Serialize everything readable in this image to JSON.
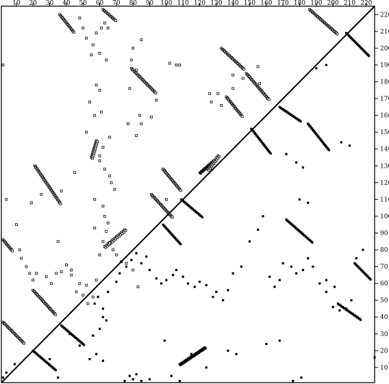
{
  "chart_data": {
    "type": "contact_map",
    "title": "",
    "xlabel": "",
    "ylabel": "",
    "xlim": [
      1,
      225
    ],
    "ylim": [
      1,
      225
    ],
    "x_ticks": [
      10,
      20,
      30,
      40,
      50,
      60,
      70,
      80,
      90,
      100,
      110,
      120,
      130,
      140,
      150,
      160,
      170,
      180,
      190,
      200,
      210,
      220
    ],
    "y_ticks": [
      10,
      20,
      30,
      40,
      50,
      60,
      70,
      80,
      90,
      100,
      110,
      120,
      130,
      140,
      150,
      160,
      170,
      180,
      190,
      200,
      210,
      220
    ],
    "diagonal": true,
    "colors": {
      "contact": "#000000",
      "outline": "#000000",
      "background": "#ffffff"
    },
    "series": [
      {
        "name": "",
        "style": "filled",
        "segments": [
          {
            "from": [
              20,
              20
            ],
            "to": [
              33,
              9
            ]
          },
          {
            "from": [
              37,
              35
            ],
            "to": [
              50,
              24
            ]
          },
          {
            "from": [
              108,
              12
            ],
            "to": [
              123,
              22
            ]
          },
          {
            "from": [
              98,
              95
            ],
            "to": [
              108,
              84
            ]
          },
          {
            "from": [
              109,
              110
            ],
            "to": [
              121,
              100
            ]
          },
          {
            "from": [
              120,
              126
            ],
            "to": [
              128,
              133
            ]
          },
          {
            "from": [
              151,
              152
            ],
            "to": [
              162,
              138
            ]
          },
          {
            "from": [
              168,
              165
            ],
            "to": [
              180,
              157
            ]
          },
          {
            "from": [
              172,
              98
            ],
            "to": [
              187,
              85
            ]
          },
          {
            "from": [
              185,
              155
            ],
            "to": [
              197,
              140
            ]
          },
          {
            "from": [
              208,
              209
            ],
            "to": [
              221,
              196
            ]
          },
          {
            "from": [
              213,
              72
            ],
            "to": [
              222,
              63
            ]
          },
          {
            "from": [
              203,
              48
            ],
            "to": [
              216,
              39
            ]
          }
        ],
        "points": [
          [
            2,
            4
          ],
          [
            4,
            7
          ],
          [
            9,
            12
          ],
          [
            30,
            15
          ],
          [
            35,
            4
          ],
          [
            42,
            30
          ],
          [
            48,
            23
          ],
          [
            54,
            15
          ],
          [
            58,
            18
          ],
          [
            62,
            14
          ],
          [
            56,
            29
          ],
          [
            60,
            33
          ],
          [
            62,
            40
          ],
          [
            64,
            38
          ],
          [
            57,
            48
          ],
          [
            59,
            52
          ],
          [
            62,
            45
          ],
          [
            65,
            55
          ],
          [
            70,
            61
          ],
          [
            72,
            66
          ],
          [
            76,
            70
          ],
          [
            79,
            74
          ],
          [
            82,
            78
          ],
          [
            85,
            72
          ],
          [
            88,
            76
          ],
          [
            90,
            68
          ],
          [
            94,
            63
          ],
          [
            97,
            60
          ],
          [
            100,
            62
          ],
          [
            104,
            65
          ],
          [
            106,
            68
          ],
          [
            110,
            64
          ],
          [
            113,
            60
          ],
          [
            117,
            58
          ],
          [
            120,
            61
          ],
          [
            124,
            59
          ],
          [
            128,
            52
          ],
          [
            130,
            55
          ],
          [
            134,
            50
          ],
          [
            137,
            56
          ],
          [
            140,
            66
          ],
          [
            145,
            70
          ],
          [
            150,
            85
          ],
          [
            155,
            92
          ],
          [
            158,
            100
          ],
          [
            162,
            64
          ],
          [
            165,
            58
          ],
          [
            168,
            62
          ],
          [
            170,
            72
          ],
          [
            175,
            70
          ],
          [
            178,
            66
          ],
          [
            182,
            68
          ],
          [
            185,
            75
          ],
          [
            188,
            70
          ],
          [
            192,
            60
          ],
          [
            196,
            55
          ],
          [
            200,
            46
          ],
          [
            204,
            44
          ],
          [
            208,
            45
          ],
          [
            211,
            50
          ],
          [
            214,
            75
          ],
          [
            218,
            80
          ],
          [
            75,
            2
          ],
          [
            78,
            5
          ],
          [
            80,
            3
          ],
          [
            82,
            6
          ],
          [
            85,
            2
          ],
          [
            90,
            3
          ],
          [
            99,
            26
          ],
          [
            103,
            5
          ],
          [
            108,
            2
          ],
          [
            115,
            18
          ],
          [
            124,
            10
          ],
          [
            137,
            20
          ],
          [
            142,
            18
          ],
          [
            160,
            24
          ],
          [
            168,
            26
          ],
          [
            172,
            137
          ],
          [
            178,
            132
          ],
          [
            182,
            129
          ],
          [
            190,
            188
          ],
          [
            196,
            190
          ],
          [
            180,
            110
          ],
          [
            185,
            108
          ],
          [
            196,
            62
          ],
          [
            201,
            58
          ],
          [
            205,
            144
          ],
          [
            210,
            142
          ],
          [
            225,
            16
          ],
          [
            176,
            2
          ],
          [
            181,
            4
          ]
        ]
      },
      {
        "name": "",
        "style": "outline",
        "segments": [
          {
            "from": [
              2,
              37
            ],
            "to": [
              14,
              25
            ]
          },
          {
            "from": [
              20,
              56
            ],
            "to": [
              33,
              42
            ]
          },
          {
            "from": [
              21,
              130
            ],
            "to": [
              36,
              108
            ]
          },
          {
            "from": [
              36,
              220
            ],
            "to": [
              44,
              210
            ]
          },
          {
            "from": [
              62,
              223
            ],
            "to": [
              69,
              217
            ]
          },
          {
            "from": [
              79,
              188
            ],
            "to": [
              93,
              174
            ]
          },
          {
            "from": [
              91,
              113
            ],
            "to": [
              103,
              100
            ]
          },
          {
            "from": [
              98,
              128
            ],
            "to": [
              108,
              116
            ]
          },
          {
            "from": [
              131,
              136
            ],
            "to": [
              125,
              128
            ]
          },
          {
            "from": [
              133,
              200
            ],
            "to": [
              146,
              188
            ]
          },
          {
            "from": [
              148,
              185
            ],
            "to": [
              161,
              170
            ]
          },
          {
            "from": [
              136,
              171
            ],
            "to": [
              145,
              160
            ]
          },
          {
            "from": [
              186,
              223
            ],
            "to": [
              202,
              209
            ]
          },
          {
            "from": [
              63,
              82
            ],
            "to": [
              75,
              92
            ]
          },
          {
            "from": [
              2,
              86
            ],
            "to": [
              7,
              80
            ]
          },
          {
            "from": [
              55,
              135
            ],
            "to": [
              58,
              145
            ]
          }
        ],
        "points": [
          [
            2,
            190
          ],
          [
            4,
            110
          ],
          [
            10,
            95
          ],
          [
            12,
            80
          ],
          [
            13,
            75
          ],
          [
            16,
            70
          ],
          [
            18,
            66
          ],
          [
            20,
            62
          ],
          [
            22,
            66
          ],
          [
            28,
            64
          ],
          [
            31,
            60
          ],
          [
            34,
            66
          ],
          [
            37,
            67
          ],
          [
            40,
            71
          ],
          [
            43,
            65
          ],
          [
            46,
            55
          ],
          [
            48,
            60
          ],
          [
            50,
            53
          ],
          [
            52,
            59
          ],
          [
            53,
            48
          ],
          [
            56,
            52
          ],
          [
            58,
            62
          ],
          [
            60,
            77
          ],
          [
            62,
            85
          ],
          [
            64,
            91
          ],
          [
            66,
            84
          ],
          [
            68,
            80
          ],
          [
            70,
            77
          ],
          [
            73,
            73
          ],
          [
            76,
            72
          ],
          [
            80,
            68
          ],
          [
            83,
            58
          ],
          [
            48,
            218
          ],
          [
            50,
            212
          ],
          [
            52,
            206
          ],
          [
            56,
            202
          ],
          [
            58,
            209
          ],
          [
            61,
            212
          ],
          [
            63,
            215
          ],
          [
            65,
            212
          ],
          [
            55,
            196
          ],
          [
            60,
            197
          ],
          [
            64,
            193
          ],
          [
            58,
            178
          ],
          [
            60,
            175
          ],
          [
            54,
            168
          ],
          [
            57,
            160
          ],
          [
            61,
            162
          ],
          [
            66,
            147
          ],
          [
            62,
            141
          ],
          [
            60,
            136
          ],
          [
            63,
            128
          ],
          [
            66,
            124
          ],
          [
            67,
            120
          ],
          [
            69,
            116
          ],
          [
            57,
            110
          ],
          [
            62,
            106
          ],
          [
            63,
            100
          ],
          [
            65,
            96
          ],
          [
            57,
            93
          ],
          [
            79,
            193
          ],
          [
            82,
            187
          ],
          [
            78,
            176
          ],
          [
            84,
            160
          ],
          [
            85,
            155
          ],
          [
            91,
            159
          ],
          [
            94,
            169
          ],
          [
            100,
            110
          ],
          [
            106,
            190
          ],
          [
            108,
            190
          ],
          [
            126,
            173
          ],
          [
            127,
            168
          ],
          [
            131,
            173
          ],
          [
            133,
            166
          ],
          [
            140,
            184
          ],
          [
            146,
            182
          ],
          [
            140,
            176
          ],
          [
            155,
            189
          ],
          [
            156,
            179
          ],
          [
            35,
            85
          ],
          [
            40,
            71
          ],
          [
            43,
            68
          ],
          [
            37,
            115
          ],
          [
            25,
            113
          ],
          [
            19,
            108
          ],
          [
            45,
            126
          ],
          [
            52,
            150
          ],
          [
            60,
            133
          ],
          [
            77,
            155
          ],
          [
            82,
            148
          ],
          [
            80,
            200
          ],
          [
            85,
            205
          ],
          [
            102,
            191
          ]
        ]
      }
    ]
  }
}
